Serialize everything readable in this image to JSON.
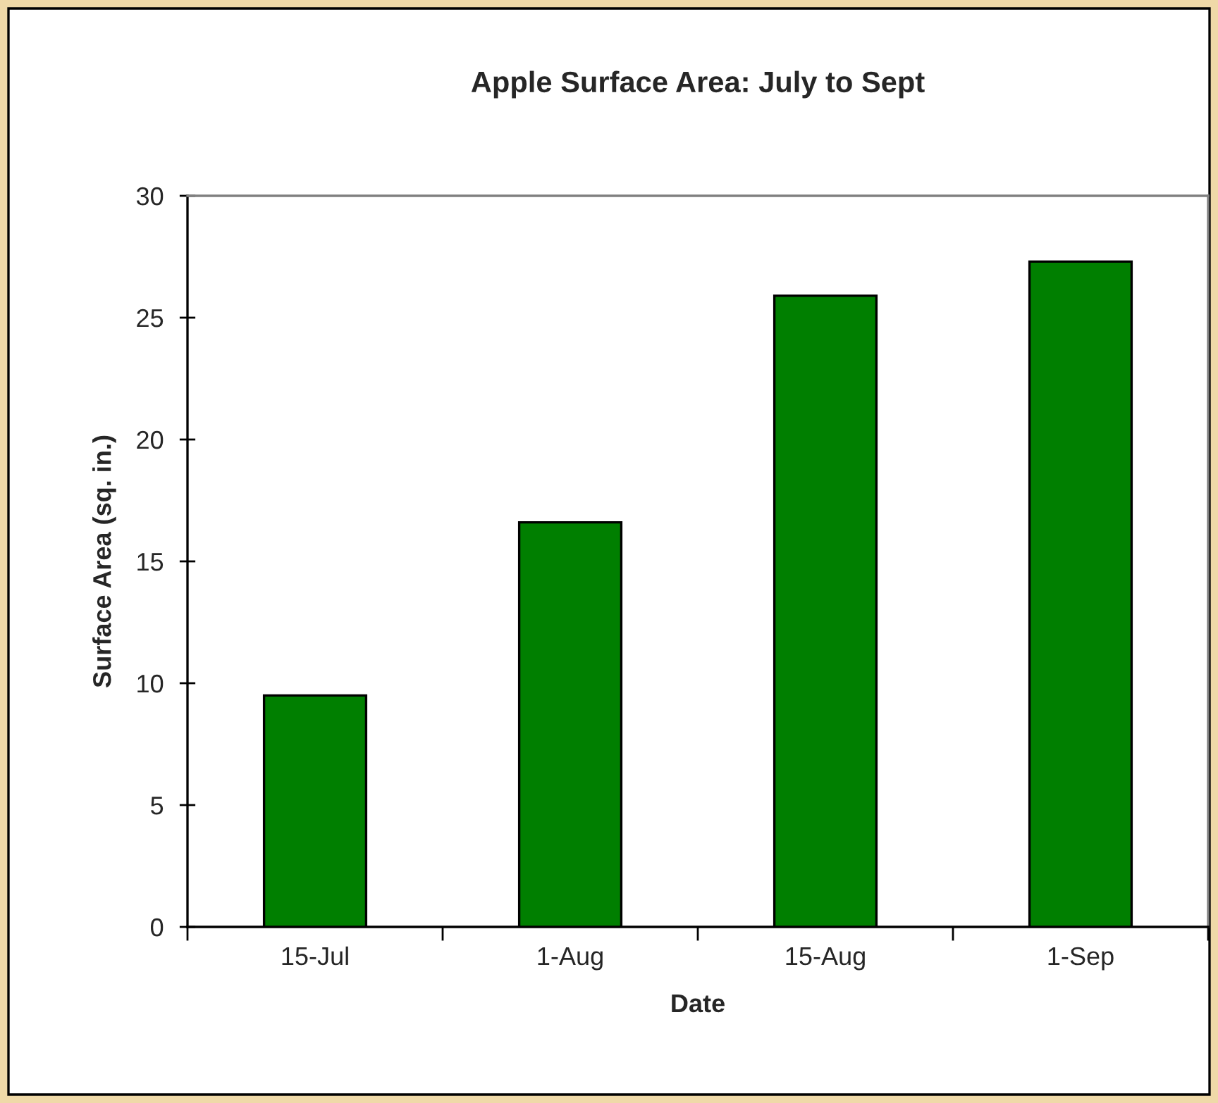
{
  "chart_data": {
    "type": "bar",
    "title": "Apple Surface Area: July to Sept",
    "xlabel": "Date",
    "ylabel": "Surface Area (sq. in.)",
    "categories": [
      "15-Jul",
      "1-Aug",
      "15-Aug",
      "1-Sep"
    ],
    "values": [
      9.5,
      16.6,
      25.9,
      27.3
    ],
    "color": "#007f00",
    "ylim": [
      0,
      30
    ],
    "yticks": [
      0,
      5,
      10,
      15,
      20,
      25,
      30
    ]
  }
}
